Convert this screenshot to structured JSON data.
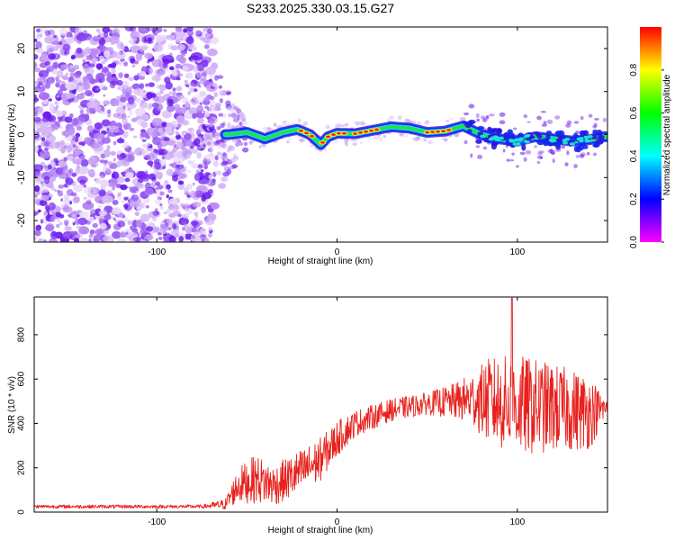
{
  "title": "S233.2025.330.03.15.G27",
  "chart_data": [
    {
      "type": "heatmap",
      "title": "S233.2025.330.03.15.G27",
      "xlabel": "Height of straight line (km)",
      "ylabel": "Frequency (Hz)",
      "xlim": [
        -168,
        150
      ],
      "ylim": [
        -25,
        25
      ],
      "xticks": [
        -100,
        0,
        100
      ],
      "yticks": [
        -20,
        -10,
        0,
        10,
        20
      ],
      "colorbar": {
        "label": "Normalized spectral amplitude",
        "range": [
          0,
          1
        ],
        "ticks": [
          0.0,
          0.2,
          0.4,
          0.6,
          0.8
        ],
        "tick_labels": [
          "0.0",
          "0.2",
          "0.4",
          "0.6",
          "0.8"
        ],
        "colormap": [
          "#ff00ff",
          "#0000ff",
          "#00ffff",
          "#00ff00",
          "#ffff00",
          "#ff0000"
        ]
      },
      "noise_region": {
        "x_range": [
          -168,
          -70
        ],
        "y_range": [
          -25,
          25
        ],
        "amplitude": 0.2
      },
      "transition_region": {
        "x_range": [
          -70,
          -50
        ],
        "amplitude": 0.3
      },
      "ridge": [
        {
          "x": -60,
          "y": 0.0
        },
        {
          "x": -50,
          "y": 0.5
        },
        {
          "x": -40,
          "y": -1.0
        },
        {
          "x": -30,
          "y": 0.5
        },
        {
          "x": -22,
          "y": 1.2
        },
        {
          "x": -15,
          "y": 0.0
        },
        {
          "x": -9,
          "y": -2.3
        },
        {
          "x": -5,
          "y": -0.5
        },
        {
          "x": 0,
          "y": 0.3
        },
        {
          "x": 10,
          "y": 0.2
        },
        {
          "x": 20,
          "y": 1.0
        },
        {
          "x": 30,
          "y": 1.8
        },
        {
          "x": 40,
          "y": 1.5
        },
        {
          "x": 50,
          "y": 0.5
        },
        {
          "x": 60,
          "y": 0.8
        },
        {
          "x": 70,
          "y": 2.0
        },
        {
          "x": 80,
          "y": 0.0
        },
        {
          "x": 90,
          "y": -1.0
        },
        {
          "x": 100,
          "y": -1.5
        },
        {
          "x": 110,
          "y": -0.5
        },
        {
          "x": 120,
          "y": -1.0
        },
        {
          "x": 130,
          "y": -1.5
        },
        {
          "x": 140,
          "y": -1.2
        },
        {
          "x": 148,
          "y": -0.5
        }
      ],
      "ridge_peak_segments": [
        [
          -20,
          -12
        ],
        [
          -8,
          5
        ],
        [
          10,
          22
        ],
        [
          50,
          62
        ]
      ]
    },
    {
      "type": "line",
      "xlabel": "Height of straight line (km)",
      "ylabel": "SNR (10 * v/v)",
      "xlim": [
        -168,
        150
      ],
      "ylim": [
        0,
        970
      ],
      "xticks": [
        -100,
        0,
        100
      ],
      "yticks": [
        0,
        200,
        400,
        600,
        800
      ],
      "color": "#e8211d",
      "envelope": [
        {
          "x": -168,
          "mean": 25,
          "noise": 8
        },
        {
          "x": -75,
          "mean": 25,
          "noise": 8
        },
        {
          "x": -62,
          "mean": 35,
          "noise": 25
        },
        {
          "x": -55,
          "mean": 120,
          "noise": 80
        },
        {
          "x": -45,
          "mean": 150,
          "noise": 110
        },
        {
          "x": -35,
          "mean": 120,
          "noise": 90
        },
        {
          "x": -25,
          "mean": 160,
          "noise": 100
        },
        {
          "x": -10,
          "mean": 230,
          "noise": 100
        },
        {
          "x": 0,
          "mean": 330,
          "noise": 80
        },
        {
          "x": 10,
          "mean": 400,
          "noise": 60
        },
        {
          "x": 30,
          "mean": 460,
          "noise": 50
        },
        {
          "x": 50,
          "mean": 490,
          "noise": 50
        },
        {
          "x": 65,
          "mean": 500,
          "noise": 80
        },
        {
          "x": 75,
          "mean": 510,
          "noise": 120
        },
        {
          "x": 85,
          "mean": 500,
          "noise": 200
        },
        {
          "x": 100,
          "mean": 480,
          "noise": 230
        },
        {
          "x": 120,
          "mean": 470,
          "noise": 200
        },
        {
          "x": 140,
          "mean": 450,
          "noise": 170
        },
        {
          "x": 150,
          "mean": 470,
          "noise": 30
        }
      ],
      "peak": {
        "x": 97,
        "y": 965
      }
    }
  ]
}
